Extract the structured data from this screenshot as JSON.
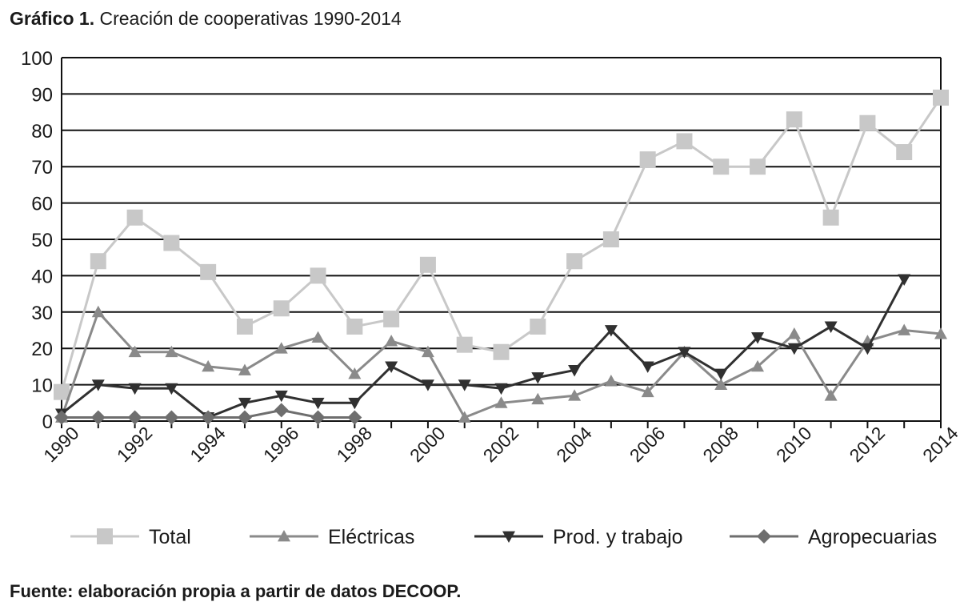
{
  "header": {
    "title_bold": "Gráfico 1.",
    "title_rest": "Creación de cooperativas 1990-2014"
  },
  "footer": {
    "source": "Fuente: elaboración propia a partir de datos DECOOP."
  },
  "colors": {
    "total": "#c8c8c8",
    "electricas": "#8a8a8a",
    "prod": "#303030",
    "agro": "#6e6e6e",
    "grid": "#111111"
  },
  "chart_data": {
    "type": "line",
    "title": "Creación de cooperativas 1990-2014",
    "xlabel": "",
    "ylabel": "",
    "x": [
      1990,
      1991,
      1992,
      1993,
      1994,
      1995,
      1996,
      1997,
      1998,
      1999,
      2000,
      2001,
      2002,
      2003,
      2004,
      2005,
      2006,
      2007,
      2008,
      2009,
      2010,
      2011,
      2012,
      2013,
      2014
    ],
    "x_tick_labels": [
      "1990",
      "1992",
      "1994",
      "1996",
      "1998",
      "2000",
      "2002",
      "2004",
      "2006",
      "2008",
      "2010",
      "2012",
      "2014"
    ],
    "y_tick_labels": [
      "0",
      "10",
      "20",
      "30",
      "40",
      "50",
      "60",
      "70",
      "80",
      "90",
      "100"
    ],
    "ylim": [
      0,
      100
    ],
    "grid": "horizontal",
    "legend_position": "bottom",
    "series": [
      {
        "name": "Total",
        "marker": "square",
        "color": "#c8c8c8",
        "values": [
          8,
          44,
          56,
          49,
          41,
          26,
          31,
          40,
          26,
          28,
          43,
          21,
          19,
          26,
          44,
          50,
          72,
          77,
          70,
          70,
          83,
          56,
          82,
          74,
          89
        ]
      },
      {
        "name": "Eléctricas",
        "marker": "triangle-up",
        "color": "#8a8a8a",
        "values": [
          1,
          30,
          19,
          19,
          15,
          14,
          20,
          23,
          13,
          22,
          19,
          1,
          5,
          6,
          7,
          11,
          8,
          19,
          10,
          15,
          24,
          7,
          22,
          25,
          24
        ]
      },
      {
        "name": "Prod. y trabajo",
        "marker": "triangle-down",
        "color": "#303030",
        "values": [
          2,
          10,
          9,
          9,
          1,
          5,
          7,
          5,
          5,
          15,
          10,
          10,
          9,
          12,
          14,
          25,
          15,
          19,
          13,
          23,
          20,
          26,
          20,
          39,
          null
        ]
      },
      {
        "name": "Agropecuarias",
        "marker": "diamond",
        "color": "#6e6e6e",
        "values": [
          1,
          1,
          1,
          1,
          1,
          1,
          3,
          1,
          1,
          null,
          null,
          null,
          null,
          null,
          null,
          null,
          null,
          null,
          null,
          null,
          null,
          null,
          null,
          null,
          null
        ]
      }
    ]
  }
}
